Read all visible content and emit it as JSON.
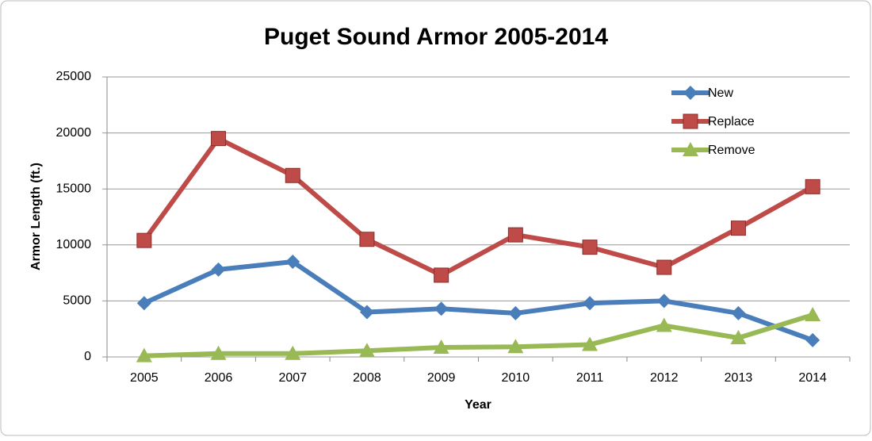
{
  "chart_data": {
    "type": "line",
    "title": "Puget Sound Armor 2005-2014",
    "x_label": "Year",
    "y_label": "Armor Length (ft.)",
    "categories": [
      "2005",
      "2006",
      "2007",
      "2008",
      "2009",
      "2010",
      "2011",
      "2012",
      "2013",
      "2014"
    ],
    "series": [
      {
        "name": "New",
        "color": "#4a7ebb",
        "marker": "diamond",
        "values": [
          4800,
          7800,
          8500,
          4000,
          4300,
          3900,
          4800,
          5000,
          3900,
          1500
        ]
      },
      {
        "name": "Replace",
        "color": "#be4b48",
        "marker": "square",
        "values": [
          10400,
          19500,
          16200,
          10500,
          7300,
          10900,
          9800,
          8000,
          11500,
          15200
        ]
      },
      {
        "name": "Remove",
        "color": "#98b954",
        "marker": "triangle",
        "values": [
          100,
          300,
          300,
          550,
          850,
          900,
          1100,
          2800,
          1700,
          3750
        ]
      }
    ],
    "ylim": [
      0,
      25000
    ],
    "yticks": [
      0,
      5000,
      10000,
      15000,
      20000,
      25000
    ],
    "grid": true,
    "legend": "top-right"
  }
}
